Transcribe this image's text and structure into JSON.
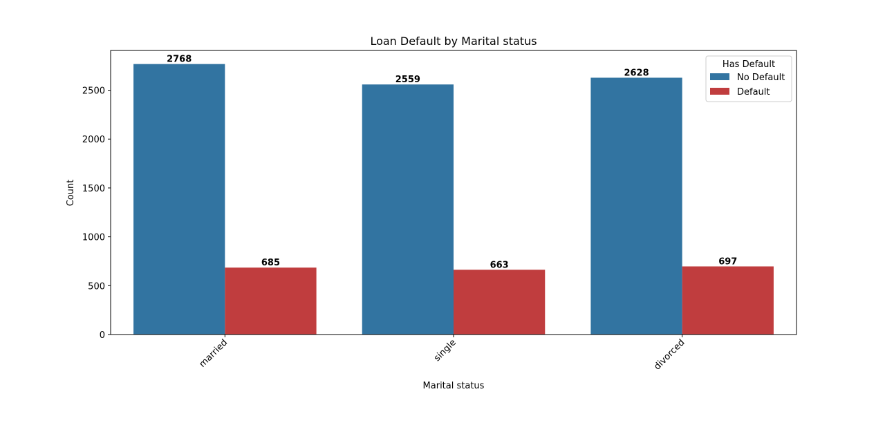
{
  "chart_data": {
    "type": "bar",
    "title": "Loan Default by Marital status",
    "xlabel": "Marital status",
    "ylabel": "Count",
    "categories": [
      "married",
      "single",
      "divorced"
    ],
    "series": [
      {
        "name": "No Default",
        "values": [
          2768,
          2559,
          2628
        ],
        "color": "#3274a1"
      },
      {
        "name": "Default",
        "values": [
          685,
          663,
          697
        ],
        "color": "#c03d3e"
      }
    ],
    "ylim": [
      0,
      2907
    ],
    "yticks": [
      0,
      500,
      1000,
      1500,
      2000,
      2500
    ],
    "grid": false,
    "legend": {
      "title": "Has Default",
      "placement": "top-right"
    },
    "xtick_rotation": 45
  }
}
